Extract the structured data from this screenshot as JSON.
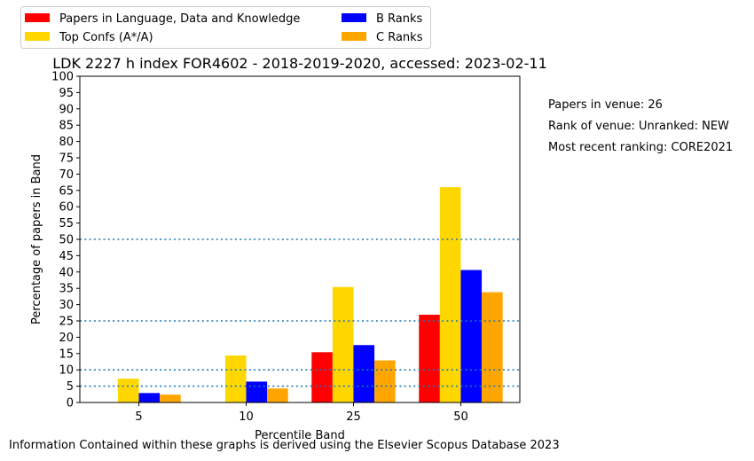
{
  "chart_data": {
    "type": "bar",
    "title": "LDK 2227 h index FOR4602 - 2018-2019-2020, accessed: 2023-02-11",
    "xlabel": "Percentile Band",
    "ylabel": "Percentage of papers in Band",
    "categories": [
      "5",
      "10",
      "25",
      "50"
    ],
    "ylim": [
      0,
      100
    ],
    "yticks": [
      0,
      5,
      10,
      15,
      20,
      25,
      30,
      35,
      40,
      45,
      50,
      55,
      60,
      65,
      70,
      75,
      80,
      85,
      90,
      95,
      100
    ],
    "reference_lines": [
      5,
      10,
      25,
      50
    ],
    "reference_line_color": "#1f77b4",
    "grid": false,
    "legend_position": "top-left, above plot",
    "series": [
      {
        "name": "Papers in Language, Data and Knowledge",
        "color": "#ff0000",
        "values": [
          0,
          0,
          15.4,
          26.9
        ]
      },
      {
        "name": "Top Confs (A*/A)",
        "color": "#ffd700",
        "values": [
          7.3,
          14.4,
          35.4,
          66.0
        ]
      },
      {
        "name": "B Ranks",
        "color": "#0000ff",
        "values": [
          2.9,
          6.4,
          17.6,
          40.6
        ]
      },
      {
        "name": "C Ranks",
        "color": "#ffa500",
        "values": [
          2.4,
          4.3,
          12.9,
          33.8
        ]
      }
    ]
  },
  "side_notes": {
    "papers_in_venue": "Papers in venue: 26",
    "rank_of_venue": "Rank of venue: Unranked: NEW",
    "most_recent_ranking": "Most recent ranking: CORE2021"
  },
  "footer": "Information Contained within these graphs is derived using the Elsevier Scopus Database 2023"
}
